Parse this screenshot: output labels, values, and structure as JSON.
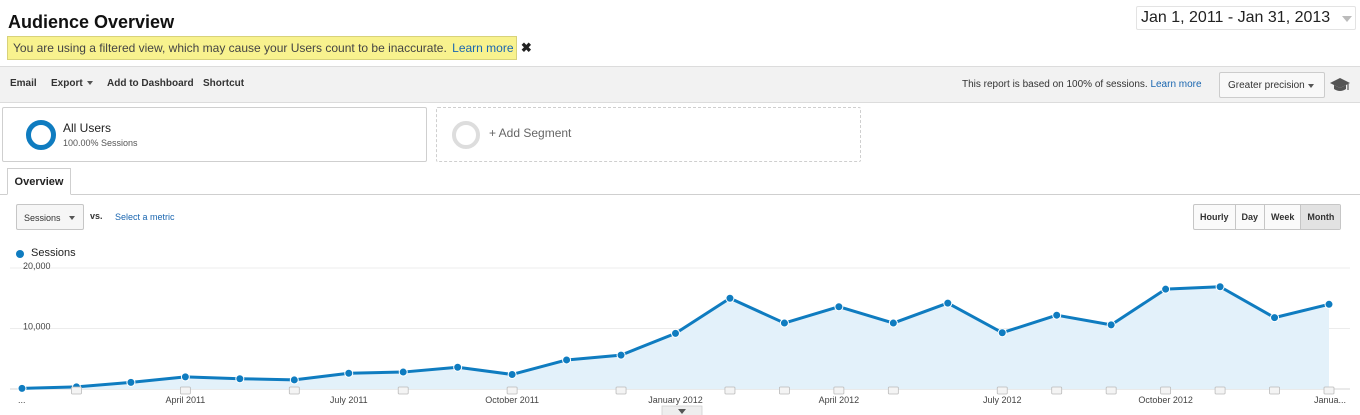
{
  "header": {
    "title": "Audience Overview",
    "date_range": "Jan 1, 2011 - Jan 31, 2013"
  },
  "banner": {
    "message": "You are using a filtered view, which may cause your Users count to be inaccurate.",
    "link": "Learn more",
    "close": "✖"
  },
  "toolbar": {
    "email": "Email",
    "export": "Export",
    "add_to_dashboard": "Add to Dashboard",
    "shortcut": "Shortcut",
    "note": "This report is based on 100% of sessions.",
    "note_link": "Learn more",
    "precision": "Greater precision"
  },
  "segments": {
    "all_users": {
      "name": "All Users",
      "sub": "100.00% Sessions"
    },
    "add_segment": "+ Add Segment"
  },
  "tabs": {
    "overview": "Overview"
  },
  "controls": {
    "metric": "Sessions",
    "vs": "vs.",
    "select_metric": "Select a metric",
    "granularity": [
      "Hourly",
      "Day",
      "Week",
      "Month"
    ],
    "active_granularity": "Month"
  },
  "legend": {
    "label": "Sessions"
  },
  "colors": {
    "series": "#0f7cc0",
    "area": "#e3f1fa",
    "banner": "#f8f28e",
    "link": "#1a66b0"
  },
  "chart_data": {
    "type": "area",
    "series": [
      {
        "name": "Sessions",
        "x": [
          "Jan 2011",
          "Feb 2011",
          "Mar 2011",
          "Apr 2011",
          "May 2011",
          "Jun 2011",
          "Jul 2011",
          "Aug 2011",
          "Sep 2011",
          "Oct 2011",
          "Nov 2011",
          "Dec 2011",
          "Jan 2012",
          "Feb 2012",
          "Mar 2012",
          "Apr 2012",
          "May 2012",
          "Jun 2012",
          "Jul 2012",
          "Aug 2012",
          "Sep 2012",
          "Oct 2012",
          "Nov 2012",
          "Dec 2012",
          "Jan 2013"
        ],
        "values": [
          100,
          350,
          1100,
          2000,
          1700,
          1500,
          2600,
          2800,
          3600,
          2400,
          4800,
          5600,
          9200,
          15000,
          10900,
          13600,
          10900,
          14200,
          9300,
          12200,
          10600,
          16500,
          16900,
          11800,
          14000
        ]
      }
    ],
    "x_tick_labels": [
      "...",
      "April 2011",
      "July 2011",
      "October 2011",
      "January 2012",
      "April 2012",
      "July 2012",
      "October 2012",
      "Janua..."
    ],
    "x_tick_indices": [
      0,
      3,
      6,
      9,
      12,
      15,
      18,
      21,
      24
    ],
    "y_tick_labels": [
      "20,000",
      "10,000"
    ],
    "y_tick_values": [
      20000,
      10000
    ],
    "ylim": [
      0,
      20000
    ],
    "annotation_marker_indices": [
      1,
      3,
      5,
      7,
      9,
      11,
      13,
      14,
      15,
      16,
      18,
      19,
      20,
      21,
      22,
      23,
      24
    ],
    "grid": true,
    "legend_position": "top-left"
  }
}
